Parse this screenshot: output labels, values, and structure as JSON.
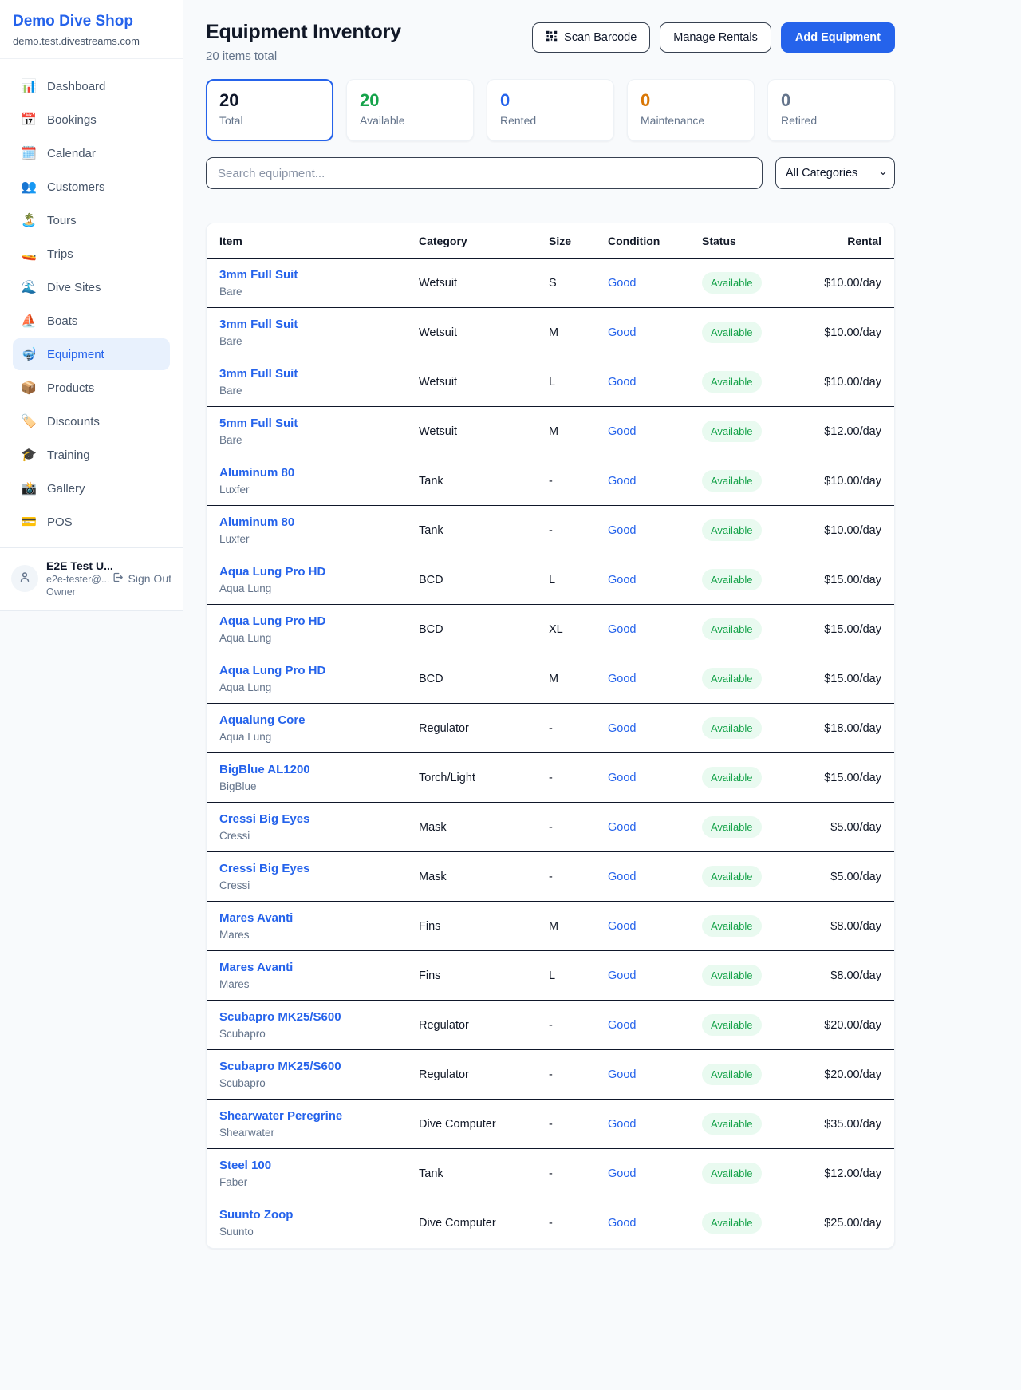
{
  "sidebar": {
    "brand": "Demo Dive Shop",
    "domain": "demo.test.divestreams.com",
    "items": [
      {
        "key": "dashboard",
        "icon": "📊",
        "label": "Dashboard",
        "active": false
      },
      {
        "key": "bookings",
        "icon": "📅",
        "label": "Bookings",
        "active": false
      },
      {
        "key": "calendar",
        "icon": "🗓️",
        "label": "Calendar",
        "active": false
      },
      {
        "key": "customers",
        "icon": "👥",
        "label": "Customers",
        "active": false
      },
      {
        "key": "tours",
        "icon": "🏝️",
        "label": "Tours",
        "active": false
      },
      {
        "key": "trips",
        "icon": "🚤",
        "label": "Trips",
        "active": false
      },
      {
        "key": "dive-sites",
        "icon": "🌊",
        "label": "Dive Sites",
        "active": false
      },
      {
        "key": "boats",
        "icon": "⛵",
        "label": "Boats",
        "active": false
      },
      {
        "key": "equipment",
        "icon": "🤿",
        "label": "Equipment",
        "active": true
      },
      {
        "key": "products",
        "icon": "📦",
        "label": "Products",
        "active": false
      },
      {
        "key": "discounts",
        "icon": "🏷️",
        "label": "Discounts",
        "active": false
      },
      {
        "key": "training",
        "icon": "🎓",
        "label": "Training",
        "active": false
      },
      {
        "key": "gallery",
        "icon": "📸",
        "label": "Gallery",
        "active": false
      },
      {
        "key": "pos",
        "icon": "💳",
        "label": "POS",
        "active": false
      }
    ],
    "user": {
      "name": "E2E Test U...",
      "email": "e2e-tester@...",
      "role": "Owner",
      "sign_out_label": "Sign Out"
    }
  },
  "header": {
    "title": "Equipment Inventory",
    "subtitle": "20 items total",
    "scan_barcode_label": "Scan Barcode",
    "manage_rentals_label": "Manage Rentals",
    "add_equipment_label": "Add Equipment"
  },
  "stats": [
    {
      "key": "total",
      "value": "20",
      "label": "Total",
      "color": "#0f172a",
      "selected": true
    },
    {
      "key": "available",
      "value": "20",
      "label": "Available",
      "color": "#16a34a",
      "selected": false
    },
    {
      "key": "rented",
      "value": "0",
      "label": "Rented",
      "color": "#2563eb",
      "selected": false
    },
    {
      "key": "maintenance",
      "value": "0",
      "label": "Maintenance",
      "color": "#d97706",
      "selected": false
    },
    {
      "key": "retired",
      "value": "0",
      "label": "Retired",
      "color": "#64748b",
      "selected": false
    }
  ],
  "filters": {
    "search_placeholder": "Search equipment...",
    "category_selected": "All Categories"
  },
  "table": {
    "columns": [
      "Item",
      "Category",
      "Size",
      "Condition",
      "Status",
      "Rental"
    ],
    "rows": [
      {
        "item": "3mm Full Suit",
        "brand": "Bare",
        "category": "Wetsuit",
        "size": "S",
        "condition": "Good",
        "status": "Available",
        "rental": "$10.00/day"
      },
      {
        "item": "3mm Full Suit",
        "brand": "Bare",
        "category": "Wetsuit",
        "size": "M",
        "condition": "Good",
        "status": "Available",
        "rental": "$10.00/day"
      },
      {
        "item": "3mm Full Suit",
        "brand": "Bare",
        "category": "Wetsuit",
        "size": "L",
        "condition": "Good",
        "status": "Available",
        "rental": "$10.00/day"
      },
      {
        "item": "5mm Full Suit",
        "brand": "Bare",
        "category": "Wetsuit",
        "size": "M",
        "condition": "Good",
        "status": "Available",
        "rental": "$12.00/day"
      },
      {
        "item": "Aluminum 80",
        "brand": "Luxfer",
        "category": "Tank",
        "size": "-",
        "condition": "Good",
        "status": "Available",
        "rental": "$10.00/day"
      },
      {
        "item": "Aluminum 80",
        "brand": "Luxfer",
        "category": "Tank",
        "size": "-",
        "condition": "Good",
        "status": "Available",
        "rental": "$10.00/day"
      },
      {
        "item": "Aqua Lung Pro HD",
        "brand": "Aqua Lung",
        "category": "BCD",
        "size": "L",
        "condition": "Good",
        "status": "Available",
        "rental": "$15.00/day"
      },
      {
        "item": "Aqua Lung Pro HD",
        "brand": "Aqua Lung",
        "category": "BCD",
        "size": "XL",
        "condition": "Good",
        "status": "Available",
        "rental": "$15.00/day"
      },
      {
        "item": "Aqua Lung Pro HD",
        "brand": "Aqua Lung",
        "category": "BCD",
        "size": "M",
        "condition": "Good",
        "status": "Available",
        "rental": "$15.00/day"
      },
      {
        "item": "Aqualung Core",
        "brand": "Aqua Lung",
        "category": "Regulator",
        "size": "-",
        "condition": "Good",
        "status": "Available",
        "rental": "$18.00/day"
      },
      {
        "item": "BigBlue AL1200",
        "brand": "BigBlue",
        "category": "Torch/Light",
        "size": "-",
        "condition": "Good",
        "status": "Available",
        "rental": "$15.00/day"
      },
      {
        "item": "Cressi Big Eyes",
        "brand": "Cressi",
        "category": "Mask",
        "size": "-",
        "condition": "Good",
        "status": "Available",
        "rental": "$5.00/day"
      },
      {
        "item": "Cressi Big Eyes",
        "brand": "Cressi",
        "category": "Mask",
        "size": "-",
        "condition": "Good",
        "status": "Available",
        "rental": "$5.00/day"
      },
      {
        "item": "Mares Avanti",
        "brand": "Mares",
        "category": "Fins",
        "size": "M",
        "condition": "Good",
        "status": "Available",
        "rental": "$8.00/day"
      },
      {
        "item": "Mares Avanti",
        "brand": "Mares",
        "category": "Fins",
        "size": "L",
        "condition": "Good",
        "status": "Available",
        "rental": "$8.00/day"
      },
      {
        "item": "Scubapro MK25/S600",
        "brand": "Scubapro",
        "category": "Regulator",
        "size": "-",
        "condition": "Good",
        "status": "Available",
        "rental": "$20.00/day"
      },
      {
        "item": "Scubapro MK25/S600",
        "brand": "Scubapro",
        "category": "Regulator",
        "size": "-",
        "condition": "Good",
        "status": "Available",
        "rental": "$20.00/day"
      },
      {
        "item": "Shearwater Peregrine",
        "brand": "Shearwater",
        "category": "Dive Computer",
        "size": "-",
        "condition": "Good",
        "status": "Available",
        "rental": "$35.00/day"
      },
      {
        "item": "Steel 100",
        "brand": "Faber",
        "category": "Tank",
        "size": "-",
        "condition": "Good",
        "status": "Available",
        "rental": "$12.00/day"
      },
      {
        "item": "Suunto Zoop",
        "brand": "Suunto",
        "category": "Dive Computer",
        "size": "-",
        "condition": "Good",
        "status": "Available",
        "rental": "$25.00/day"
      }
    ]
  },
  "colors": {
    "accent": "#2563eb",
    "status_available_text": "#16a34a",
    "status_available_bg": "#e9faf0",
    "table_border": "#0f172a"
  }
}
